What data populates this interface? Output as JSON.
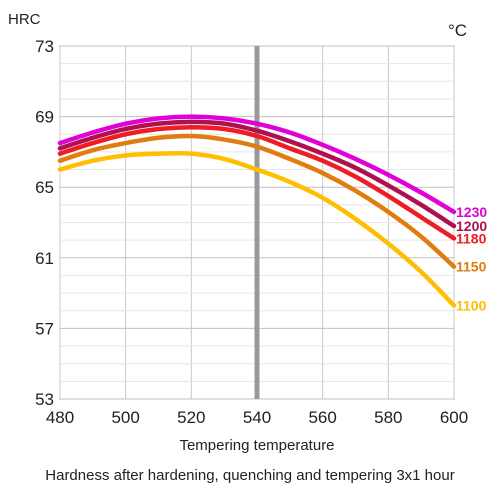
{
  "chart_data": {
    "type": "line",
    "title": "",
    "ylabel": "HRC",
    "xlabel": "Tempering temperature",
    "series_unit": "°C",
    "caption": "Hardness after hardening, quenching and tempering  3x1 hour",
    "xlim": [
      480,
      600
    ],
    "ylim": [
      53,
      73
    ],
    "x_ticks": [
      480,
      500,
      520,
      540,
      560,
      580,
      600
    ],
    "y_ticks": [
      53,
      57,
      61,
      65,
      69,
      73
    ],
    "grid": true,
    "reference_line_x": 540,
    "x": [
      480,
      490,
      500,
      510,
      520,
      530,
      540,
      550,
      560,
      570,
      580,
      590,
      600
    ],
    "series": [
      {
        "name": "1230",
        "color": "#e000d8",
        "values": [
          67.5,
          68.1,
          68.6,
          68.9,
          69.0,
          68.9,
          68.6,
          68.1,
          67.4,
          66.6,
          65.7,
          64.7,
          63.6
        ]
      },
      {
        "name": "1200",
        "color": "#b0104f",
        "values": [
          67.2,
          67.8,
          68.3,
          68.6,
          68.7,
          68.6,
          68.2,
          67.6,
          66.9,
          66.1,
          65.1,
          64.0,
          62.8
        ]
      },
      {
        "name": "1180",
        "color": "#ee1c25",
        "values": [
          66.9,
          67.5,
          68.0,
          68.3,
          68.4,
          68.3,
          67.9,
          67.2,
          66.5,
          65.6,
          64.5,
          63.3,
          62.1
        ]
      },
      {
        "name": "1150",
        "color": "#e07d10",
        "values": [
          66.5,
          67.1,
          67.5,
          67.8,
          67.9,
          67.7,
          67.3,
          66.6,
          65.8,
          64.8,
          63.6,
          62.2,
          60.5
        ]
      },
      {
        "name": "1100",
        "color": "#ffbf00",
        "values": [
          66.0,
          66.5,
          66.8,
          66.9,
          66.9,
          66.6,
          66.0,
          65.3,
          64.4,
          63.2,
          61.8,
          60.2,
          58.3
        ]
      }
    ]
  }
}
